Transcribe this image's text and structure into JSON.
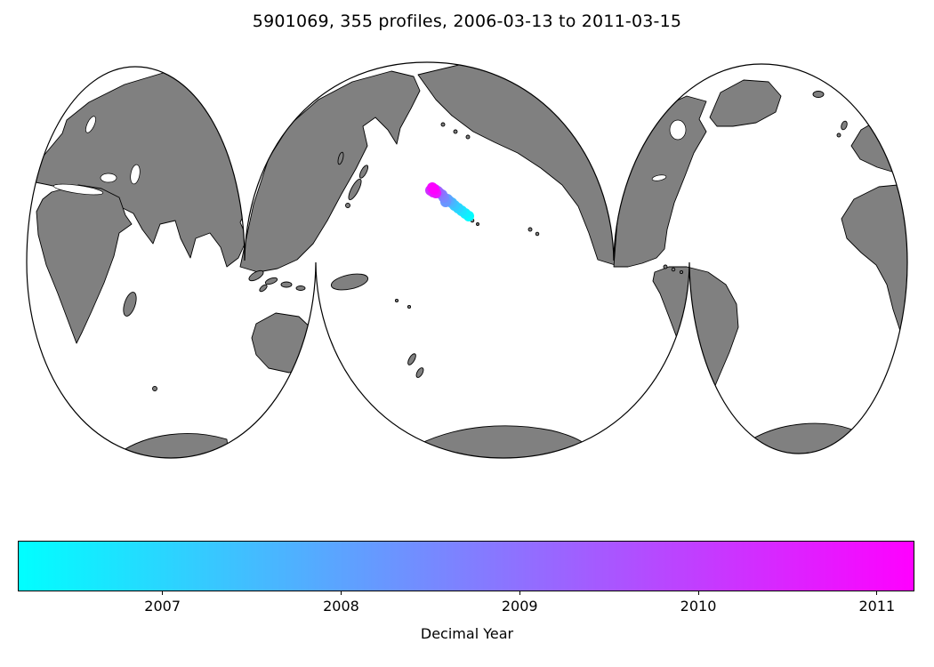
{
  "figure": {
    "title": "5901069, 355 profiles, 2006-03-13 to 2011-03-15",
    "background": "#ffffff"
  },
  "chart_data": {
    "type": "scatter",
    "subtype": "float-trajectory-on-world-map",
    "projection": "interrupted Goode homolosine world map",
    "title": "5901069, 355 profiles, 2006-03-13 to 2011-03-15",
    "float_id": "5901069",
    "n_profiles": 355,
    "date_range": [
      "2006-03-13",
      "2011-03-15"
    ],
    "land_color": "#808080",
    "ocean_color": "#ffffff",
    "coastline_color": "#000000",
    "colorbar": {
      "label": "Decimal Year",
      "cmap": "cool",
      "color_min": "#00ffff",
      "color_max": "#ff00ff",
      "range": [
        2006.19,
        2011.21
      ],
      "ticks": [
        2007,
        2008,
        2009,
        2010,
        2011
      ],
      "orientation": "horizontal"
    },
    "series": [
      {
        "name": "profile-positions",
        "coords": "map pixel coordinates (x right, y down), color = decimal year",
        "point_radius": 6,
        "points": [
          {
            "x": 527,
            "y": 243,
            "year": 2006.25
          },
          {
            "x": 523,
            "y": 240,
            "year": 2006.5
          },
          {
            "x": 519,
            "y": 237,
            "year": 2006.75
          },
          {
            "x": 515,
            "y": 234,
            "year": 2007.0
          },
          {
            "x": 511,
            "y": 231,
            "year": 2007.25
          },
          {
            "x": 508,
            "y": 228,
            "year": 2007.5
          },
          {
            "x": 505,
            "y": 226,
            "year": 2007.75
          },
          {
            "x": 503,
            "y": 224,
            "year": 2008.0
          },
          {
            "x": 501,
            "y": 227,
            "year": 2008.25
          },
          {
            "x": 499,
            "y": 222,
            "year": 2008.5
          },
          {
            "x": 497,
            "y": 219,
            "year": 2008.75
          },
          {
            "x": 494,
            "y": 217,
            "year": 2009.0
          },
          {
            "x": 492,
            "y": 215,
            "year": 2009.3
          },
          {
            "x": 489,
            "y": 213,
            "year": 2009.6
          },
          {
            "x": 486,
            "y": 212,
            "year": 2009.9
          },
          {
            "x": 484,
            "y": 214,
            "year": 2010.2
          },
          {
            "x": 487,
            "y": 216,
            "year": 2010.5
          },
          {
            "x": 490,
            "y": 217,
            "year": 2010.8
          },
          {
            "x": 486,
            "y": 211,
            "year": 2011.0
          },
          {
            "x": 488,
            "y": 213,
            "year": 2011.2
          }
        ]
      }
    ]
  }
}
